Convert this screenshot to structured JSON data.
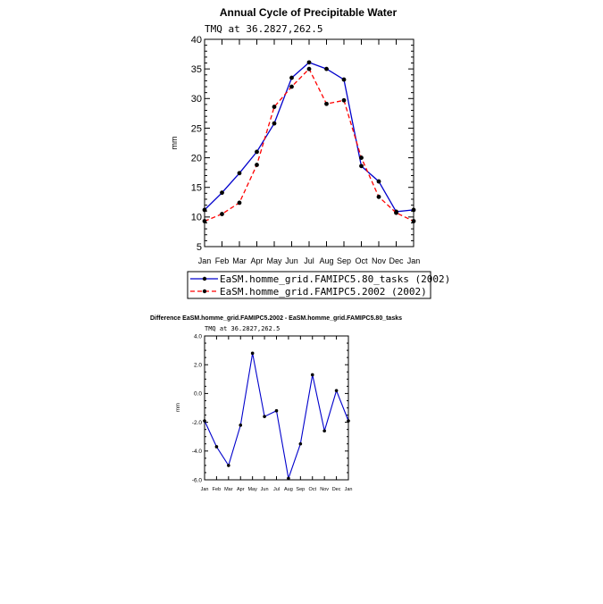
{
  "chart_data": [
    {
      "type": "line",
      "title": "Annual Cycle of Precipitable Water",
      "subtitle": "TMQ at 36.2827,262.5",
      "xlabel": "",
      "ylabel": "mm",
      "categories": [
        "Jan",
        "Feb",
        "Mar",
        "Apr",
        "May",
        "Jun",
        "Jul",
        "Aug",
        "Sep",
        "Oct",
        "Nov",
        "Dec",
        "Jan"
      ],
      "ylim": [
        5,
        40
      ],
      "yticks": [
        "5",
        "10",
        "15",
        "20",
        "25",
        "30",
        "35",
        "40"
      ],
      "legend_position": "below",
      "series": [
        {
          "name": "EaSM.homme_grid.FAMIPC5.80_tasks (2002)",
          "color": "#0000cc",
          "dash": "solid",
          "values": [
            11.2,
            14.1,
            17.4,
            21.0,
            25.8,
            33.5,
            36.1,
            35.0,
            33.2,
            18.6,
            16.0,
            10.9,
            11.2
          ]
        },
        {
          "name": "EaSM.homme_grid.FAMIPC5.2002 (2002)",
          "color": "#ff0000",
          "dash": "dashed",
          "values": [
            9.3,
            10.5,
            12.4,
            18.8,
            28.6,
            32.0,
            35.0,
            29.1,
            29.7,
            20.0,
            13.4,
            10.7,
            9.3
          ]
        }
      ]
    },
    {
      "type": "line",
      "title": "Difference EaSM.homme_grid.FAMIPC5.2002 - EaSM.homme_grid.FAMIPC5.80_tasks",
      "subtitle": "TMQ at 36.2827,262.5",
      "xlabel": "",
      "ylabel": "mm",
      "categories": [
        "Jan",
        "Feb",
        "Mar",
        "Apr",
        "May",
        "Jun",
        "Jul",
        "Aug",
        "Sep",
        "Oct",
        "Nov",
        "Dec",
        "Jan"
      ],
      "ylim": [
        -6,
        4
      ],
      "yticks": [
        "-6.0",
        "-4.0",
        "-2.0",
        "0.0",
        "2.0",
        "4.0"
      ],
      "series": [
        {
          "name": "Difference",
          "color": "#0000cc",
          "dash": "solid",
          "values": [
            -1.9,
            -3.7,
            -5.0,
            -2.2,
            2.8,
            -1.6,
            -1.2,
            -5.9,
            -3.5,
            1.3,
            -2.6,
            0.2,
            -1.9
          ]
        }
      ]
    }
  ]
}
